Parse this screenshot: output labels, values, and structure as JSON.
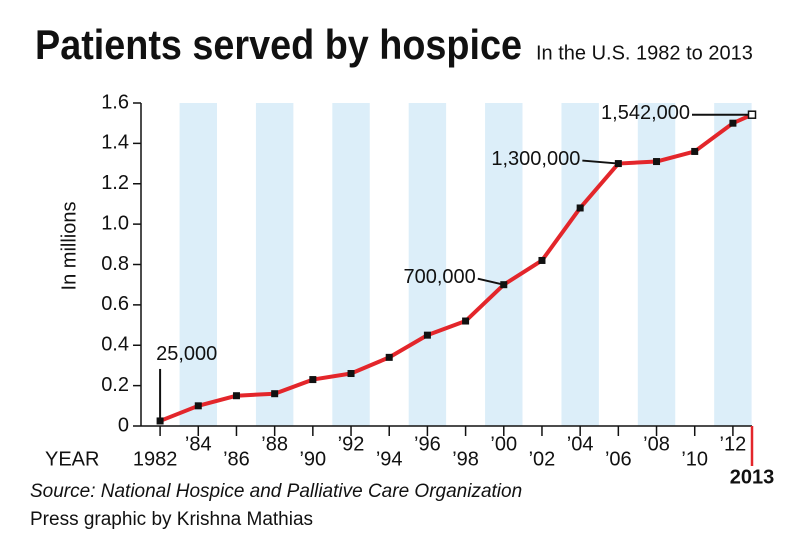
{
  "chart_data": {
    "type": "line",
    "title": "Patients served by hospice",
    "subtitle": "In the U.S. 1982 to 2013",
    "y_label": "In millions",
    "x_label": "YEAR",
    "source": "Source: National Hospice and Palliative Care Organization",
    "credit": "Press graphic by Krishna Mathias",
    "x": [
      1982,
      1984,
      1986,
      1988,
      1990,
      1992,
      1994,
      1996,
      1998,
      2000,
      2002,
      2004,
      2006,
      2008,
      2010,
      2012,
      2013
    ],
    "series": [
      {
        "name": "Patients served",
        "color": "#e3262b",
        "values": [
          0.025,
          0.1,
          0.15,
          0.16,
          0.23,
          0.26,
          0.34,
          0.45,
          0.52,
          0.7,
          0.82,
          1.08,
          1.3,
          1.31,
          1.36,
          1.5,
          1.542
        ],
        "value_labels": [
          "25,000",
          null,
          null,
          null,
          null,
          null,
          null,
          null,
          null,
          "700,000",
          null,
          null,
          "1,300,000",
          null,
          null,
          null,
          "1,542,000"
        ]
      }
    ],
    "xlim": [
      1981,
      2013
    ],
    "xticks": [
      {
        "value": 1982,
        "label": "1982"
      },
      {
        "value": 1984,
        "label": "’84"
      },
      {
        "value": 1986,
        "label": "’86"
      },
      {
        "value": 1988,
        "label": "’88"
      },
      {
        "value": 1990,
        "label": "’90"
      },
      {
        "value": 1992,
        "label": "’92"
      },
      {
        "value": 1994,
        "label": "’94"
      },
      {
        "value": 1996,
        "label": "’96"
      },
      {
        "value": 1998,
        "label": "’98"
      },
      {
        "value": 2000,
        "label": "’00"
      },
      {
        "value": 2002,
        "label": "’02"
      },
      {
        "value": 2004,
        "label": "’04"
      },
      {
        "value": 2006,
        "label": "’06"
      },
      {
        "value": 2008,
        "label": "’08"
      },
      {
        "value": 2010,
        "label": "’10"
      },
      {
        "value": 2012,
        "label": "’12"
      },
      {
        "value": 2013,
        "label": "2013"
      }
    ],
    "ylim": [
      0,
      1.6
    ],
    "yticks": [
      0,
      0.2,
      0.4,
      0.6,
      0.8,
      {
        "value": 1,
        "label": "1.0"
      },
      1.2,
      1.4,
      1.6
    ],
    "grid": false
  }
}
